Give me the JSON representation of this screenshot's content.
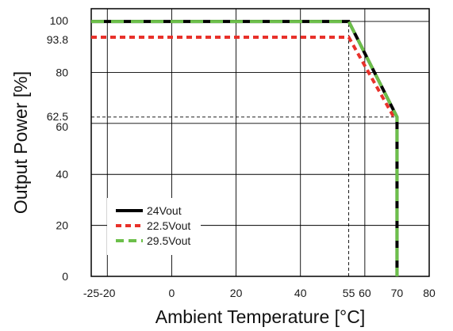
{
  "chart_data": {
    "type": "line",
    "title": "",
    "xlabel": "Ambient Temperature [°C]",
    "ylabel": "Output Power [%]",
    "xlim": [
      -25,
      80
    ],
    "ylim": [
      0,
      105
    ],
    "x_ticks": [
      -25,
      -20,
      0,
      20,
      40,
      55,
      60,
      70,
      80
    ],
    "y_ticks": [
      0,
      20,
      40,
      60,
      62.5,
      80,
      93.8,
      100
    ],
    "vertical_gridlines": [
      -20,
      0,
      20,
      40,
      60,
      80
    ],
    "horizontal_gridlines": [
      20,
      40,
      60,
      80,
      100
    ],
    "grid": true,
    "legend_position": "bottom-left",
    "series": [
      {
        "name": "24Vout",
        "color": "#000000",
        "style": "solid",
        "x": [
          -25,
          55,
          70,
          70
        ],
        "y": [
          100,
          100,
          62.5,
          0
        ]
      },
      {
        "name": "22.5Vout",
        "color": "#e8312a",
        "style": "dotted",
        "x": [
          -25,
          55,
          69
        ],
        "y": [
          93.8,
          93.8,
          62.5
        ]
      },
      {
        "name": "29.5Vout",
        "color": "#6cbf4a",
        "style": "dashed",
        "x": [
          -25,
          55,
          70,
          70
        ],
        "y": [
          100,
          100,
          62.5,
          0
        ]
      }
    ],
    "reference_lines": [
      {
        "axis": "x",
        "value": 55,
        "from": 0,
        "to": 100
      },
      {
        "axis": "y",
        "value": 62.5,
        "from": -25,
        "to": 70
      }
    ]
  }
}
